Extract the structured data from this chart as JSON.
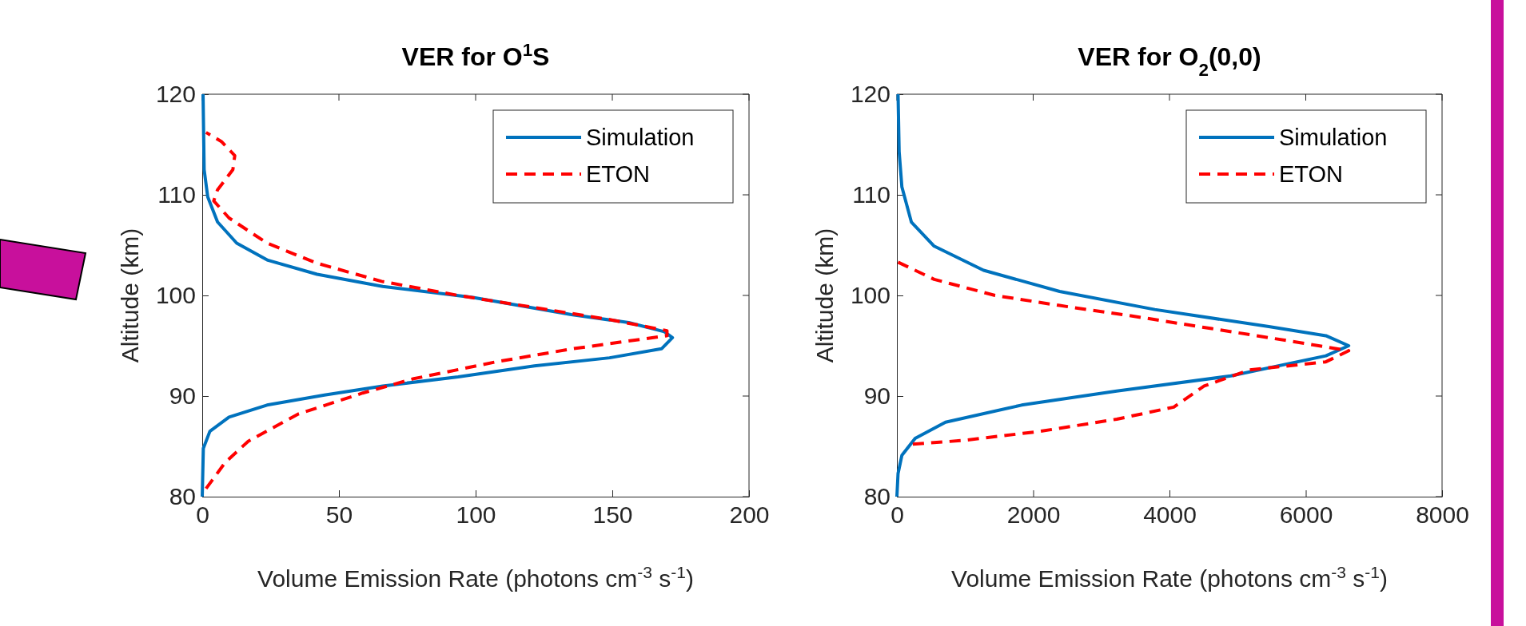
{
  "chart_data": [
    {
      "type": "line",
      "title": "VER for O$^{1}$S",
      "xlabel": "Volume Emission Rate (photons cm$^{-3}$ s$^{-1}$)",
      "ylabel": "Altitude (km)",
      "xlim": [
        0,
        200
      ],
      "xticks": [
        0,
        50,
        100,
        150,
        200
      ],
      "ylim": [
        80,
        120
      ],
      "yticks": [
        80,
        90,
        100,
        110,
        120
      ],
      "legend": "top right",
      "grid": false,
      "series": [
        {
          "name": "Simulation",
          "color": "#0072bd",
          "line_style": "solid",
          "x": [
            0.3,
            0.7,
            2,
            5.6,
            12.6,
            24,
            42,
            66,
            99,
            135,
            156,
            169,
            172,
            168,
            149,
            121.5,
            93.6,
            66,
            44.7,
            23.7,
            9.8,
            2.8,
            0.4,
            0
          ],
          "values": [
            120,
            112.5,
            109.8,
            107.3,
            105.2,
            103.5,
            102.1,
            100.9,
            99.8,
            98.1,
            97.3,
            96.4,
            95.8,
            94.7,
            93.8,
            93,
            91.9,
            91,
            90.1,
            89.1,
            87.9,
            86.5,
            84.8,
            80
          ]
        },
        {
          "name": "ETON",
          "color": "#ff0000",
          "line_style": "dashed",
          "x": [
            1.4,
            8.4,
            16.8,
            35,
            58.7,
            77,
            107.5,
            135.5,
            170,
            170,
            149,
            121.5,
            93.6,
            65.6,
            42,
            23.7,
            9.8,
            4.2,
            5.6,
            11.2,
            11.9,
            7,
            1.4
          ],
          "values": [
            80.8,
            83.4,
            85.5,
            88.2,
            90.3,
            91.7,
            93.4,
            94.7,
            96,
            96.5,
            97.6,
            98.8,
            100,
            101.4,
            103.2,
            105.2,
            107.7,
            109.4,
            110.5,
            112.5,
            113.9,
            115.3,
            116.2
          ]
        }
      ]
    },
    {
      "type": "line",
      "title": "VER for O$_{2}$(0,0)",
      "xlabel": "Volume Emission Rate (photons cm$^{-3}$ s$^{-1}$)",
      "ylabel": "Altitude (km)",
      "xlim": [
        0,
        8000
      ],
      "xticks": [
        0,
        2000,
        4000,
        6000,
        8000
      ],
      "ylim": [
        80,
        120
      ],
      "yticks": [
        80,
        90,
        100,
        110,
        120
      ],
      "legend": "top right",
      "grid": false,
      "series": [
        {
          "name": "Simulation",
          "color": "#0072bd",
          "line_style": "solid",
          "x": [
            17,
            33,
            73,
            212,
            547,
            1272,
            2388,
            3784,
            5458,
            6295,
            6630,
            6295,
            4900,
            3225,
            1830,
            714,
            268,
            73,
            17,
            0
          ],
          "values": [
            120,
            114.3,
            110.8,
            107.3,
            104.9,
            102.5,
            100.4,
            98.6,
            96.9,
            96,
            95,
            94,
            92,
            90.5,
            89.1,
            87.4,
            85.8,
            84.1,
            82.3,
            80
          ]
        },
        {
          "name": "ETON",
          "color": "#ff0000",
          "line_style": "dashed",
          "x": [
            17,
            547,
            1440,
            2388,
            3505,
            4621,
            5737,
            6630,
            6295,
            5179,
            4509,
            4063,
            3226,
            2110,
            994,
            212
          ],
          "values": [
            103.3,
            101.6,
            100,
            99,
            97.9,
            96.7,
            95.5,
            94.5,
            93.4,
            92.6,
            91,
            88.9,
            87.7,
            86.5,
            85.6,
            85.2
          ]
        }
      ]
    }
  ]
}
